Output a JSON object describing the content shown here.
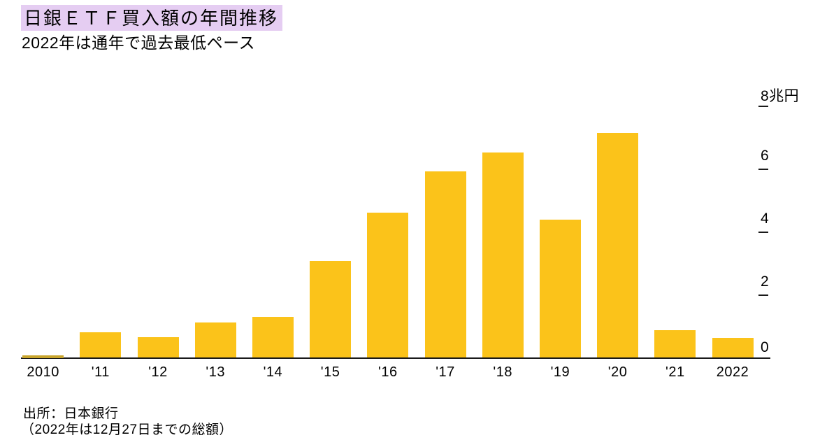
{
  "header": {
    "title": "日銀ＥＴＦ買入額の年間推移",
    "subtitle": "2022年は通年で過去最低ペース"
  },
  "chart_data": {
    "type": "bar",
    "title": "日銀ＥＴＦ買入額の年間推移",
    "subtitle": "2022年は通年で過去最低ペース",
    "unit": "兆円",
    "categories": [
      "2010",
      "'11",
      "'12",
      "'13",
      "'14",
      "'15",
      "'16",
      "'17",
      "'18",
      "'19",
      "'20",
      "'21",
      "2022"
    ],
    "values": [
      0.03,
      0.8,
      0.64,
      1.1,
      1.28,
      3.07,
      4.6,
      5.9,
      6.5,
      4.38,
      7.14,
      0.87,
      0.63
    ],
    "ylim": [
      0,
      8
    ],
    "y_ticks": [
      {
        "label": "8兆円",
        "value": 8,
        "dash": true
      },
      {
        "label": "6",
        "value": 6,
        "dash": true
      },
      {
        "label": "4",
        "value": 4,
        "dash": true
      },
      {
        "label": "2",
        "value": 2,
        "dash": true
      },
      {
        "label": "0",
        "value": 0,
        "dash": false
      }
    ],
    "grid": false,
    "legend_position": "none"
  },
  "footer": {
    "source": "出所：日本銀行",
    "note": "（2022年は12月27日までの総額）"
  },
  "colors": {
    "bar": "#FBC31A",
    "bar_tiny": "#C8A52D",
    "title_highlight": "#E5CDF2",
    "axis": "#1A1A1A",
    "text": "#000000"
  }
}
